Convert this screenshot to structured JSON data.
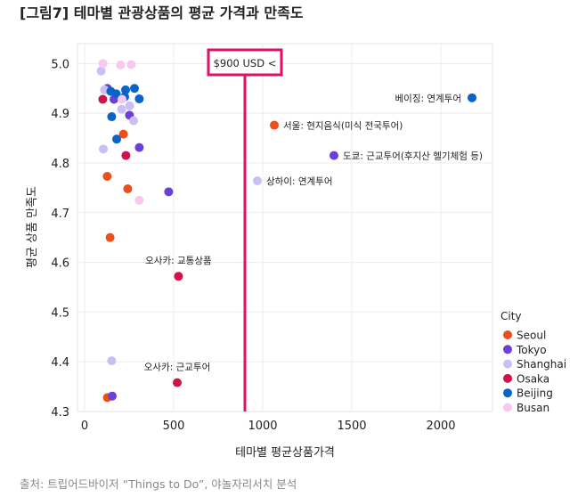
{
  "chart_data": {
    "type": "scatter",
    "title": "[그림7] 테마별 관광상품의 평균 가격과 만족도",
    "xlabel": "테마별 평균상품가격",
    "ylabel": "평균 상품 만족도",
    "xlim": [
      -40,
      2290
    ],
    "ylim": [
      4.3,
      5.04
    ],
    "xticks": [
      "0",
      "500",
      "1000",
      "1500",
      "2000"
    ],
    "xtick_values": [
      0,
      500,
      1000,
      1500,
      2000
    ],
    "yticks": [
      "4.3",
      "4.4",
      "4.5",
      "4.6",
      "4.7",
      "4.8",
      "4.9",
      "5.0"
    ],
    "ytick_values": [
      4.3,
      4.4,
      4.5,
      4.6,
      4.7,
      4.8,
      4.9,
      5.0
    ],
    "grid": true,
    "legend": {
      "title": "City",
      "placement": "right"
    },
    "reference_line": {
      "x": 900,
      "label": "$900 USD <",
      "color": "#E0106A"
    },
    "series": [
      {
        "name": "Seoul",
        "color": "#E8501E",
        "points": [
          [
            218,
            4.858
          ],
          [
            127,
            4.773
          ],
          [
            242,
            4.748
          ],
          [
            143,
            4.65
          ],
          [
            128,
            4.328
          ],
          [
            1065,
            4.876
          ]
        ]
      },
      {
        "name": "Tokyo",
        "color": "#6A40D8",
        "points": [
          [
            128,
            4.95
          ],
          [
            165,
            4.928
          ],
          [
            252,
            4.896
          ],
          [
            307,
            4.831
          ],
          [
            472,
            4.742
          ],
          [
            155,
            4.331
          ],
          [
            1400,
            4.815
          ]
        ]
      },
      {
        "name": "Shanghai",
        "color": "#C8C0F5",
        "points": [
          [
            93,
            4.985
          ],
          [
            112,
            4.947
          ],
          [
            208,
            4.908
          ],
          [
            253,
            4.915
          ],
          [
            275,
            4.885
          ],
          [
            105,
            4.828
          ],
          [
            152,
            4.402
          ],
          [
            970,
            4.764
          ]
        ]
      },
      {
        "name": "Osaka",
        "color": "#D0124A",
        "points": [
          [
            102,
            4.928
          ],
          [
            232,
            4.815
          ],
          [
            527,
            4.572
          ],
          [
            520,
            4.358
          ]
        ]
      },
      {
        "name": "Beijing",
        "color": "#0A64C8",
        "points": [
          [
            147,
            4.944
          ],
          [
            178,
            4.939
          ],
          [
            230,
            4.947
          ],
          [
            280,
            4.95
          ],
          [
            225,
            4.933
          ],
          [
            307,
            4.929
          ],
          [
            152,
            4.893
          ],
          [
            180,
            4.848
          ],
          [
            2175,
            4.931
          ]
        ]
      },
      {
        "name": "Busan",
        "color": "#F8C8F0",
        "points": [
          [
            103,
            5.0
          ],
          [
            202,
            4.997
          ],
          [
            262,
            4.998
          ],
          [
            210,
            4.928
          ],
          [
            307,
            4.725
          ]
        ]
      }
    ],
    "annotations": [
      {
        "text": "베이징: 연계투어",
        "x": 2175,
        "y": 4.931,
        "side": "left"
      },
      {
        "text": "서울: 현지음식(미식 전국투어)",
        "x": 1065,
        "y": 4.876,
        "side": "right"
      },
      {
        "text": "도쿄: 근교투어(후지산 헬기체험 등)",
        "x": 1400,
        "y": 4.815,
        "side": "right"
      },
      {
        "text": "상하이: 연계투어",
        "x": 970,
        "y": 4.764,
        "side": "right"
      },
      {
        "text": "오사카: 교통상품",
        "x": 527,
        "y": 4.572,
        "side": "above"
      },
      {
        "text": "오사카: 근교투어",
        "x": 520,
        "y": 4.358,
        "side": "above"
      }
    ]
  },
  "source": "출처: 트립어드바이저 “Things to Do”, 야놀자리서치 분석"
}
